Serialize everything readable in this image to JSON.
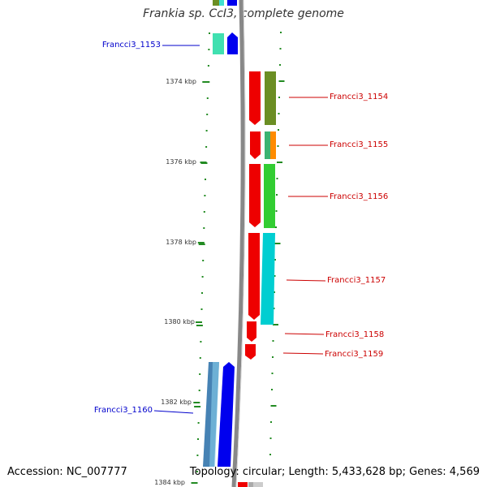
{
  "title": "Frankia sp. CcI3, complete genome",
  "footer": {
    "accession": "Accession: NC_007777",
    "summary": "Topology: circular; Length: 5,433,628 bp; Genes: 4,569"
  },
  "scale": {
    "ticks": [
      "1374 kbp",
      "1376 kbp",
      "1378 kbp",
      "1380 kbp",
      "1382 kbp",
      "1384 kbp"
    ]
  },
  "genes": [
    {
      "name": "Francci3_1153",
      "strand": "minus",
      "color": "#0000cc"
    },
    {
      "name": "Francci3_1154",
      "strand": "plus",
      "color": "#cc0000"
    },
    {
      "name": "Francci3_1155",
      "strand": "plus",
      "color": "#cc0000"
    },
    {
      "name": "Francci3_1156",
      "strand": "plus",
      "color": "#cc0000"
    },
    {
      "name": "Francci3_1157",
      "strand": "plus",
      "color": "#cc0000"
    },
    {
      "name": "Francci3_1158",
      "strand": "plus",
      "color": "#cc0000"
    },
    {
      "name": "Francci3_1159",
      "strand": "plus",
      "color": "#cc0000"
    },
    {
      "name": "Francci3_1160",
      "strand": "minus",
      "color": "#0000cc"
    }
  ],
  "colors": {
    "backbone": "#888888",
    "plus_strand_feature": "#ff0000",
    "minus_strand_feature": "#0000ff",
    "ticks": "#228b22"
  }
}
